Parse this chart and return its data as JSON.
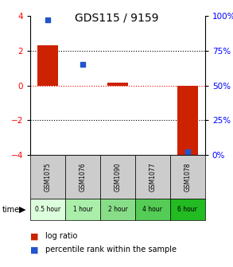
{
  "title": "GDS115 / 9159",
  "samples": [
    "GSM1075",
    "GSM1076",
    "GSM1090",
    "GSM1077",
    "GSM1078"
  ],
  "time_labels": [
    "0.5 hour",
    "1 hour",
    "2 hour",
    "4 hour",
    "6 hour"
  ],
  "log_ratios": [
    2.3,
    0.0,
    0.15,
    0.0,
    -4.2
  ],
  "percentile_ranks": [
    97.0,
    65.0,
    null,
    null,
    2.0
  ],
  "ylim": [
    -4,
    4
  ],
  "right_ylim": [
    0,
    100
  ],
  "right_yticks": [
    0,
    25,
    50,
    75,
    100
  ],
  "right_yticklabels": [
    "0%",
    "25%",
    "50%",
    "75%",
    "100%"
  ],
  "left_yticks": [
    -4,
    -2,
    0,
    2,
    4
  ],
  "bar_color": "#cc2200",
  "dot_color": "#2255cc",
  "hline_black_vals": [
    2,
    -2
  ],
  "hline_red_val": 0,
  "header_bg": "#cccccc",
  "time_colors": [
    "#ddfedd",
    "#aaeea9",
    "#88dd88",
    "#55cc55",
    "#22bb22"
  ],
  "legend_bar_color": "#cc2200",
  "legend_dot_color": "#2255cc"
}
